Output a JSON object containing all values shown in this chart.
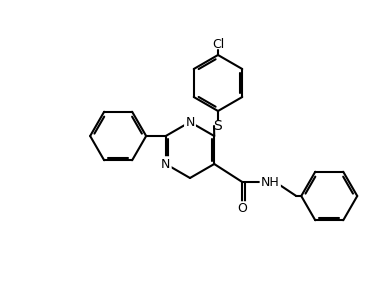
{
  "bg_color": "#ffffff",
  "line_color": "#000000",
  "lw": 1.5,
  "cl_label": "Cl",
  "s_label": "S",
  "n_labels": [
    "N",
    "N"
  ],
  "nh_label": "H",
  "o_label": "O",
  "font_size": 9
}
